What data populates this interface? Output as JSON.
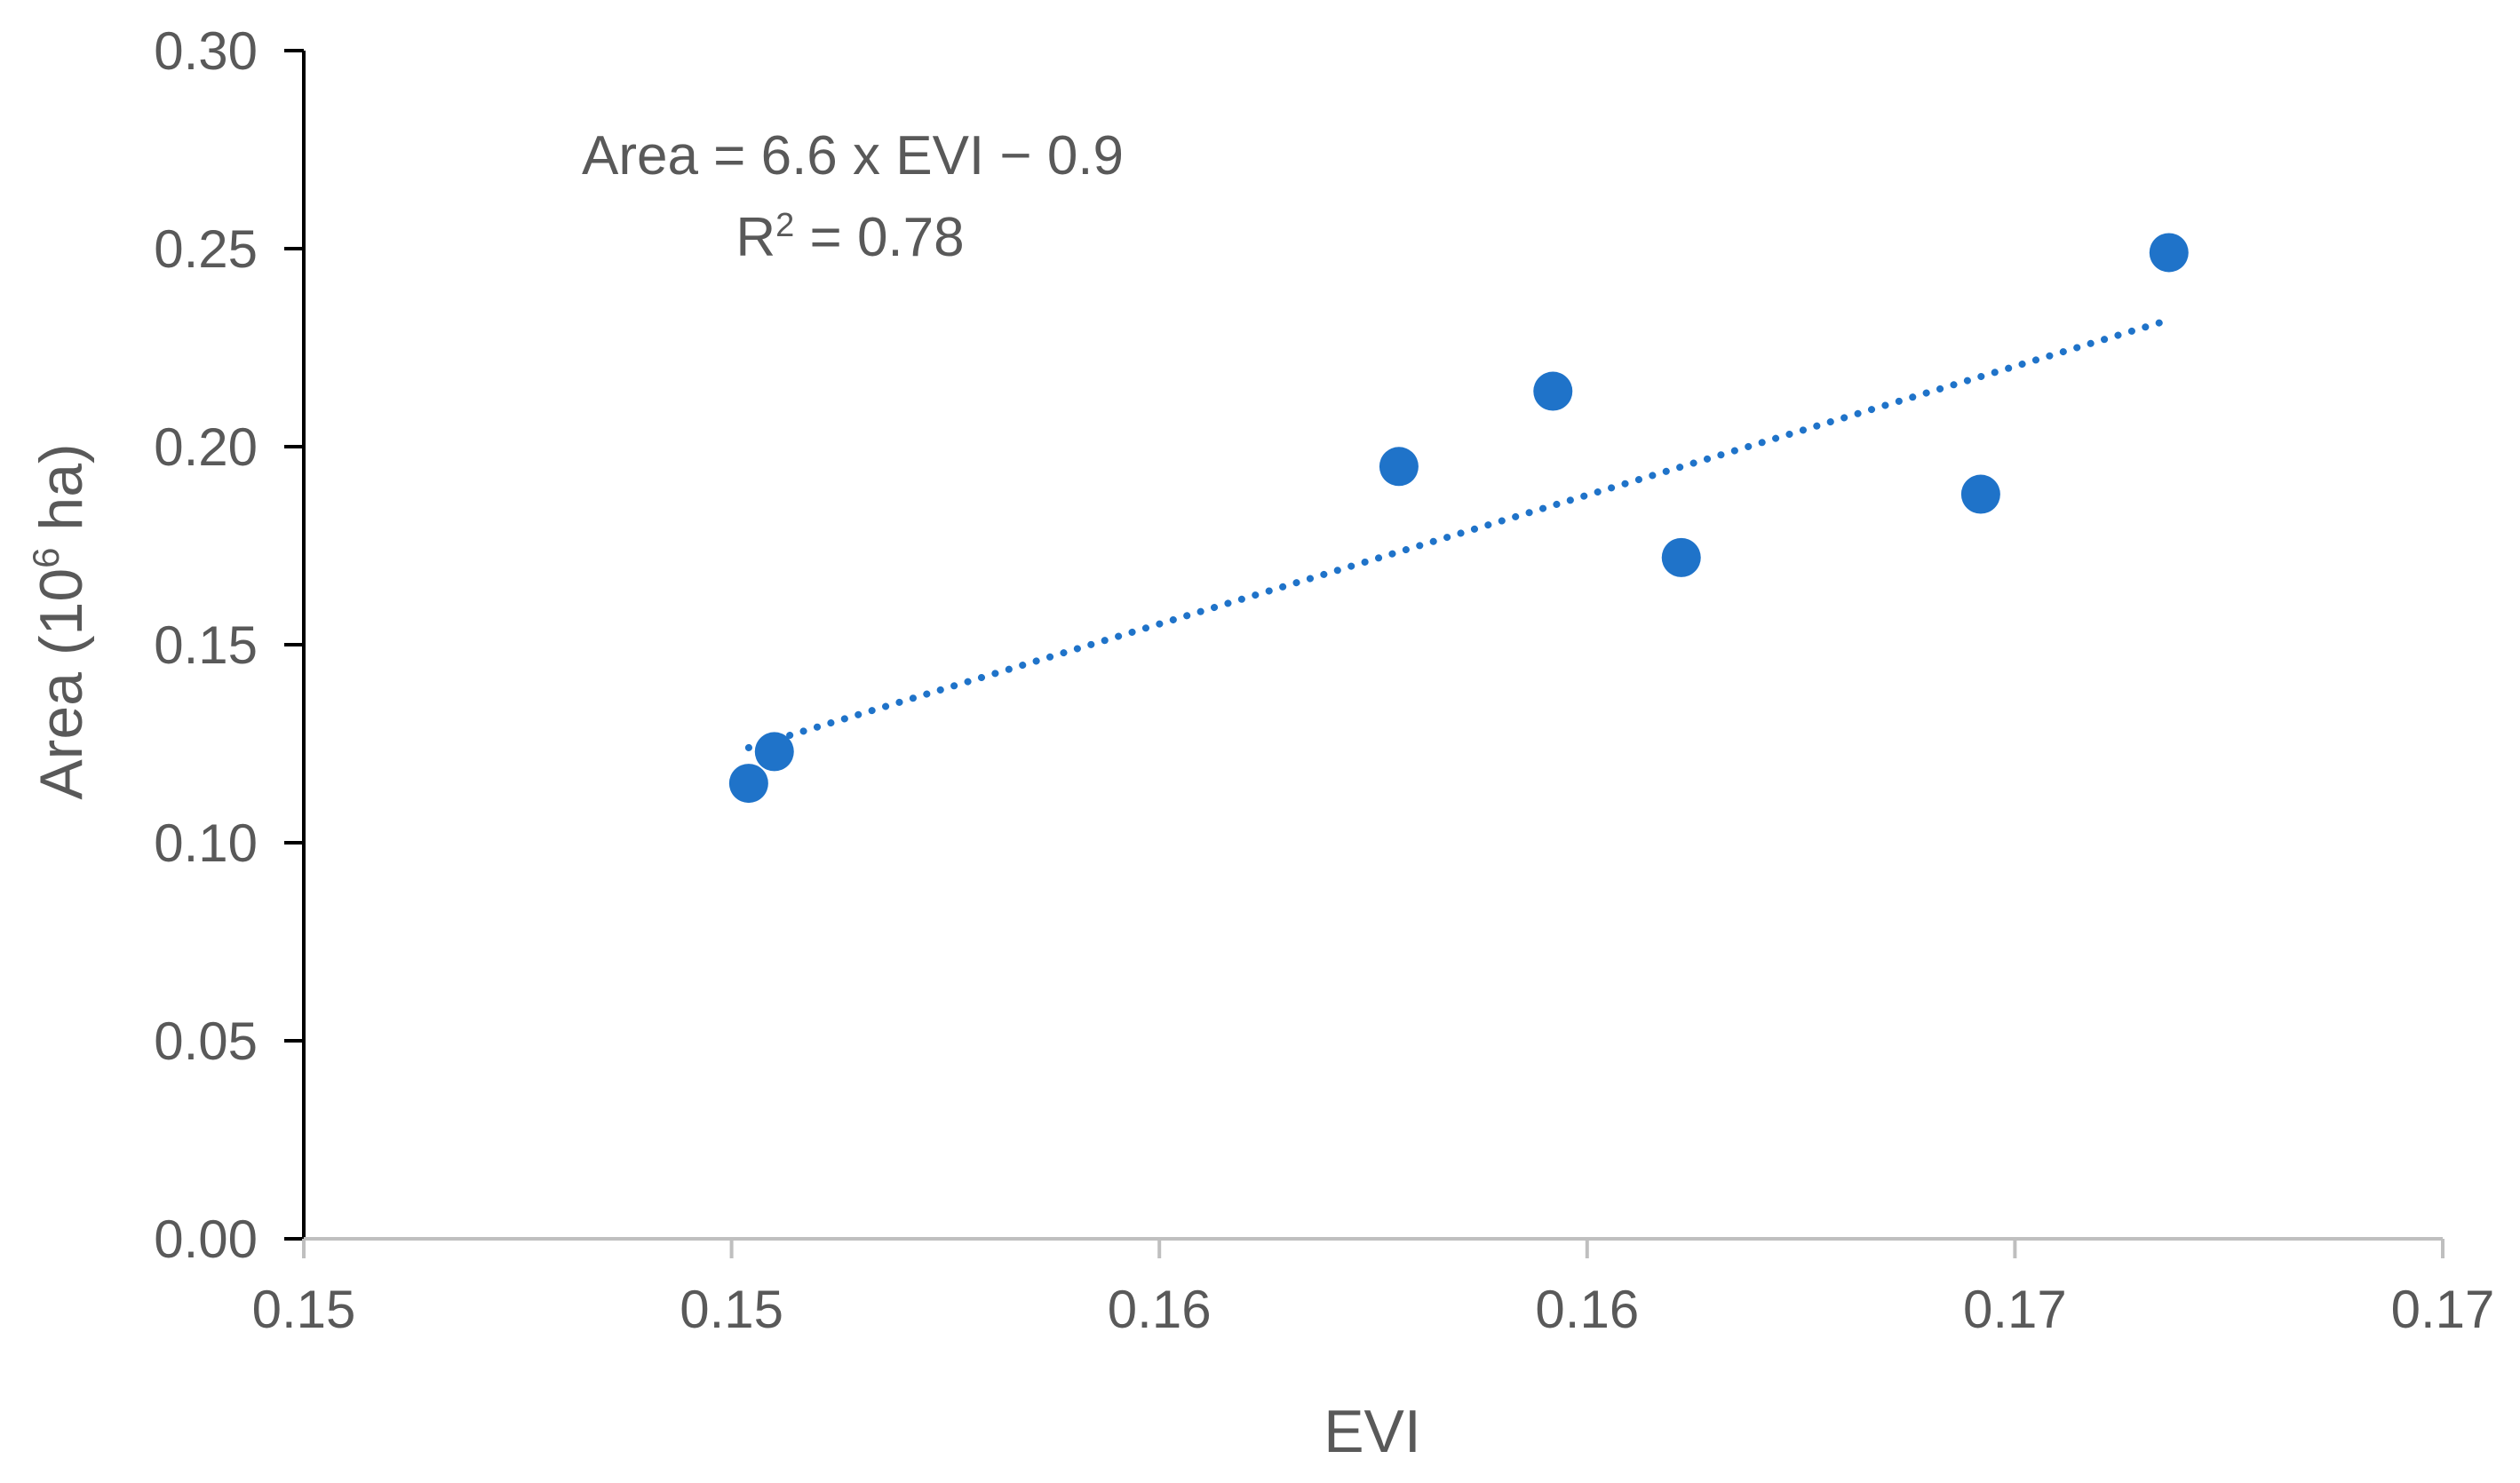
{
  "chart_data": {
    "type": "scatter",
    "title": "",
    "xlabel": "EVI",
    "ylabel": "Area (10",
    "ylabel_superscript": "6",
    "ylabel_suffix": " ha)",
    "xlim": [
      0.145,
      0.17
    ],
    "ylim": [
      0,
      0.3
    ],
    "x_ticks": [
      0.145,
      0.15,
      0.155,
      0.16,
      0.165,
      0.17
    ],
    "x_tick_labels": [
      "0.15",
      "0.15",
      "0.16",
      "0.16",
      "0.17",
      "0.17"
    ],
    "y_ticks": [
      0,
      0.05,
      0.1,
      0.15,
      0.2,
      0.25,
      0.3
    ],
    "y_tick_labels": [
      "0.00",
      "0.05",
      "0.10",
      "0.15",
      "0.20",
      "0.25",
      "0.30"
    ],
    "series": [
      {
        "name": "Area",
        "color": "#1f73c9",
        "points": [
          {
            "x": 0.1502,
            "y": 0.115
          },
          {
            "x": 0.1505,
            "y": 0.123
          },
          {
            "x": 0.1578,
            "y": 0.195
          },
          {
            "x": 0.1596,
            "y": 0.214
          },
          {
            "x": 0.1611,
            "y": 0.172
          },
          {
            "x": 0.1646,
            "y": 0.188
          },
          {
            "x": 0.1668,
            "y": 0.249
          }
        ]
      }
    ],
    "trendline": {
      "type": "linear",
      "style": "dotted",
      "color": "#1f73c9",
      "x_range": [
        0.1502,
        0.1668
      ],
      "y_range": [
        0.124,
        0.232
      ],
      "equation": "Area = 6.6 x EVI − 0.9",
      "r_squared_label": "R",
      "r_squared_sup": "2",
      "r_squared_value": " = 0.78"
    },
    "grid": false,
    "legend": "none"
  }
}
